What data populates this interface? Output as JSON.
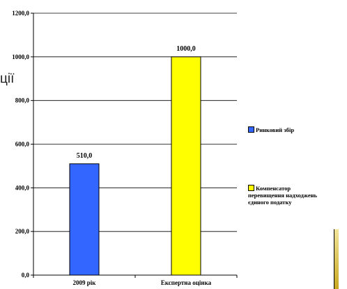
{
  "background_fragment": "ції",
  "chart_data": {
    "type": "bar",
    "categories": [
      "2009 рік",
      "Експертна оцінка"
    ],
    "series": [
      {
        "name": "Ринковий збір",
        "values": [
          510.0,
          null
        ],
        "color": "#3366ff"
      },
      {
        "name": "Компенсатор перевищення надходжень єдиного податку",
        "values": [
          null,
          1000.0
        ],
        "color": "#ffff00"
      }
    ],
    "data_labels": [
      "510,0",
      "1000,0"
    ],
    "yticks": [
      "0,0",
      "200,0",
      "400,0",
      "600,0",
      "800,0",
      "1000,0",
      "1200,0"
    ],
    "ylim": [
      0,
      1200
    ],
    "grid": true,
    "legend": {
      "placement": "right",
      "items": [
        {
          "lines": [
            "Ринковий збір"
          ],
          "color": "#3366ff"
        },
        {
          "lines": [
            "Компенсатор",
            "перевищення надходжень",
            "єдиного податку"
          ],
          "color": "#ffff00"
        }
      ]
    }
  }
}
